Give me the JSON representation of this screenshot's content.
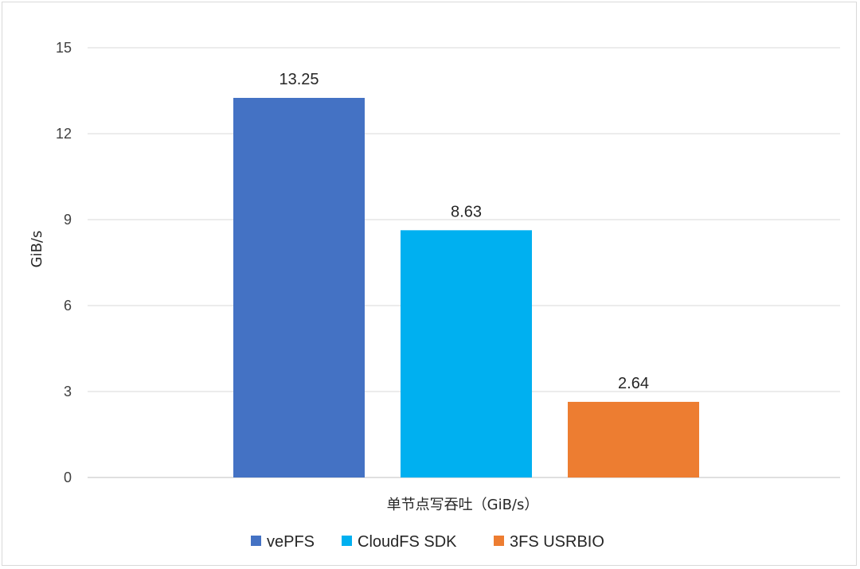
{
  "chart_data": {
    "type": "bar",
    "title": "",
    "xlabel": "单节点写吞吐（GiB/s）",
    "ylabel": "GiB/s",
    "ylim": [
      0,
      15
    ],
    "yticks": [
      0,
      3,
      6,
      9,
      12,
      15
    ],
    "grid": true,
    "legend_position": "bottom",
    "categories": [
      "单节点写吞吐（GiB/s）"
    ],
    "series": [
      {
        "name": "vePFS",
        "values": [
          13.25
        ],
        "label": "13.25",
        "color": "#4472c4"
      },
      {
        "name": "CloudFS SDK",
        "values": [
          8.63
        ],
        "label": "8.63",
        "color": "#00b0f0"
      },
      {
        "name": "3FS USRBIO",
        "values": [
          2.64
        ],
        "label": "2.64",
        "color": "#ed7d31"
      }
    ]
  }
}
